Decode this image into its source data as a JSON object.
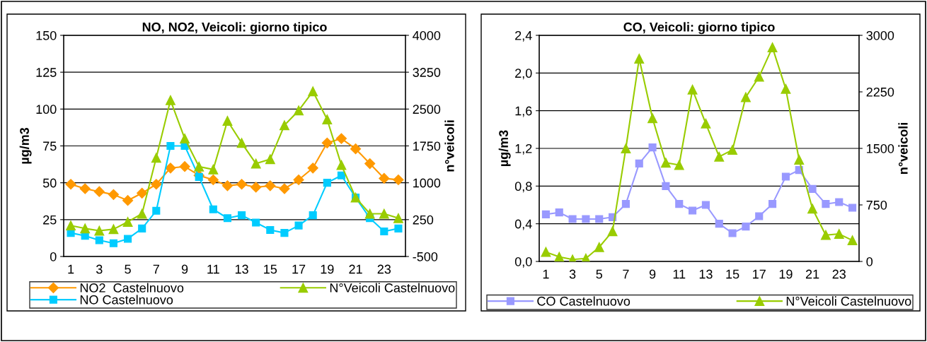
{
  "chart_data": [
    {
      "type": "line",
      "title": "NO, NO2, Veicoli: giorno tipico",
      "ylabel": "µg/m3",
      "y2label": "n°veicoli",
      "categories": [
        "1",
        null,
        "3",
        null,
        "5",
        null,
        "7",
        null,
        "9",
        null,
        "11",
        null,
        "13",
        null,
        "15",
        null,
        "17",
        null,
        "19",
        null,
        "21",
        null,
        "23",
        null
      ],
      "ylim": [
        0,
        150
      ],
      "yticks": [
        0,
        25,
        50,
        75,
        100,
        125,
        150
      ],
      "y2lim": [
        -500,
        4000
      ],
      "y2ticks": [
        -500,
        250,
        1000,
        1750,
        2500,
        3250,
        4000
      ],
      "grid": "y",
      "legend": "bottom",
      "series": [
        {
          "name": "NO2  Castelnuovo",
          "color": "#ff9900",
          "marker": "diamond",
          "values": [
            49,
            46,
            44,
            42,
            38,
            43,
            49,
            60,
            61,
            55,
            52,
            48,
            49,
            47,
            48,
            46,
            52,
            60,
            77,
            80,
            73,
            63,
            53,
            52
          ]
        },
        {
          "name": "NO Castelnuovo",
          "color": "#00ccff",
          "marker": "square",
          "values": [
            16,
            14,
            11,
            9,
            12,
            19,
            31,
            75,
            75,
            54,
            32,
            26,
            28,
            23,
            18,
            16,
            21,
            28,
            50,
            55,
            40,
            26,
            17,
            19
          ]
        },
        {
          "name": "N°Veicoli Castelnuovo",
          "color": "#99cc00",
          "marker": "triangle",
          "axis": "y2",
          "values": [
            130,
            70,
            25,
            55,
            205,
            370,
            1510,
            2680,
            1900,
            1330,
            1270,
            2260,
            1810,
            1390,
            1480,
            2170,
            2470,
            2860,
            2290,
            1360,
            700,
            370,
            370,
            280
          ]
        }
      ]
    },
    {
      "type": "line",
      "title": "CO, Veicoli: giorno tipico",
      "ylabel": "µg/m3",
      "y2label": "n°veicoli",
      "categories": [
        "1",
        null,
        "3",
        null,
        "5",
        null,
        "7",
        null,
        "9",
        null,
        "11",
        null,
        "13",
        null,
        "15",
        null,
        "17",
        null,
        "19",
        null,
        "21",
        null,
        "23",
        null
      ],
      "ylim": [
        0,
        2.4
      ],
      "yticks": [
        {
          "value": 0,
          "label": "0,0"
        },
        {
          "value": 0.4,
          "label": "0,4"
        },
        {
          "value": 0.8,
          "label": "0,8"
        },
        {
          "value": 1.2,
          "label": "1,2"
        },
        {
          "value": 1.6,
          "label": "1,6"
        },
        {
          "value": 2.0,
          "label": "2,0"
        },
        {
          "value": 2.4,
          "label": "2,4"
        }
      ],
      "y2lim": [
        0,
        3000
      ],
      "y2ticks": [
        0,
        750,
        1500,
        2250,
        3000
      ],
      "grid": "y",
      "legend": "bottom",
      "series": [
        {
          "name": "CO Castelnuovo",
          "color": "#9999ff",
          "marker": "square",
          "values": [
            0.5,
            0.52,
            0.45,
            0.45,
            0.45,
            0.47,
            0.61,
            1.04,
            1.21,
            0.8,
            0.61,
            0.54,
            0.6,
            0.4,
            0.3,
            0.37,
            0.48,
            0.61,
            0.9,
            0.97,
            0.77,
            0.61,
            0.63,
            0.57
          ]
        },
        {
          "name": "N°Veicoli Castelnuovo",
          "color": "#99cc00",
          "marker": "triangle",
          "axis": "y2",
          "values": [
            125,
            60,
            25,
            40,
            190,
            400,
            1500,
            2690,
            1900,
            1310,
            1280,
            2280,
            1830,
            1390,
            1480,
            2180,
            2450,
            2840,
            2290,
            1350,
            700,
            350,
            365,
            280
          ]
        }
      ]
    }
  ]
}
